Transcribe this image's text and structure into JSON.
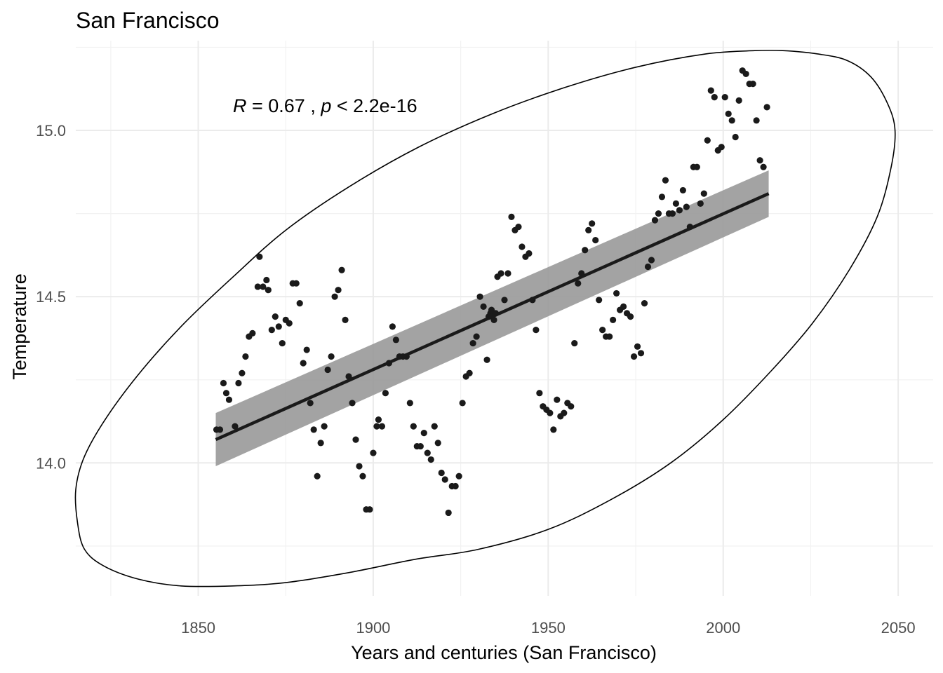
{
  "chart_data": {
    "type": "scatter",
    "title": "San Francisco",
    "xlabel": "Years and centuries (San Francisco)",
    "ylabel": "Temperature",
    "annotation": {
      "r_label": "R",
      "r_text": " = 0.67 , ",
      "p_label": "p",
      "p_text": " < 2.2e-16"
    },
    "xlim": [
      1815,
      2060
    ],
    "ylim": [
      13.6,
      15.27
    ],
    "x_major_ticks": [
      1850,
      1900,
      1950,
      2000,
      2050
    ],
    "x_minor_ticks": [
      1825,
      1875,
      1925,
      1975,
      2025
    ],
    "y_major_ticks": [
      14.0,
      14.5,
      15.0
    ],
    "y_minor_ticks": [
      13.75,
      14.25,
      14.75,
      15.25
    ],
    "x_tick_labels": [
      "1850",
      "1900",
      "1950",
      "2000",
      "2050"
    ],
    "y_tick_labels": [
      "14.0",
      "14.5",
      "15.0"
    ],
    "grid": true,
    "point_color": "#1a1a1a",
    "line_color": "#1a1a1a",
    "ribbon_color": "#999999",
    "regression": {
      "x": [
        1855,
        2013
      ],
      "y": [
        14.07,
        14.81
      ],
      "ci_lower": [
        13.99,
        14.74
      ],
      "ci_upper": [
        14.15,
        14.88
      ]
    },
    "ellipse_path": [
      [
        2017.0,
        15.24
      ],
      [
        2027.0,
        15.23
      ],
      [
        2035.5,
        15.21
      ],
      [
        2042.3,
        15.16
      ],
      [
        2047.0,
        15.08
      ],
      [
        2049.1,
        15.0
      ],
      [
        2048.0,
        14.89
      ],
      [
        2044.0,
        14.74
      ],
      [
        2036.0,
        14.58
      ],
      [
        2025.5,
        14.42
      ],
      [
        2014.0,
        14.28
      ],
      [
        2000.0,
        14.13
      ],
      [
        1985.0,
        14.0
      ],
      [
        1968.0,
        13.89
      ],
      [
        1950.0,
        13.8
      ],
      [
        1930.0,
        13.74
      ],
      [
        1912.0,
        13.71
      ],
      [
        1893.0,
        13.67
      ],
      [
        1875.0,
        13.64
      ],
      [
        1860.0,
        13.63
      ],
      [
        1845.0,
        13.63
      ],
      [
        1833.0,
        13.65
      ],
      [
        1823.0,
        13.69
      ],
      [
        1817.5,
        13.74
      ],
      [
        1815.5,
        13.82
      ],
      [
        1815.0,
        13.92
      ],
      [
        1817.5,
        14.02
      ],
      [
        1824.0,
        14.14
      ],
      [
        1834.0,
        14.28
      ],
      [
        1846.0,
        14.42
      ],
      [
        1860.0,
        14.56
      ],
      [
        1875.0,
        14.7
      ],
      [
        1893.0,
        14.83
      ],
      [
        1913.0,
        14.95
      ],
      [
        1934.0,
        15.05
      ],
      [
        1955.0,
        15.13
      ],
      [
        1975.0,
        15.19
      ],
      [
        1995.0,
        15.23
      ],
      [
        2009.0,
        15.24
      ],
      [
        2017.0,
        15.24
      ]
    ],
    "points": [
      [
        1855.2,
        14.1
      ],
      [
        1856.2,
        14.1
      ],
      [
        1857.2,
        14.24
      ],
      [
        1858.0,
        14.21
      ],
      [
        1858.8,
        14.19
      ],
      [
        1860.5,
        14.11
      ],
      [
        1861.5,
        14.24
      ],
      [
        1862.5,
        14.27
      ],
      [
        1863.5,
        14.32
      ],
      [
        1864.5,
        14.38
      ],
      [
        1865.5,
        14.39
      ],
      [
        1867.0,
        14.53
      ],
      [
        1867.5,
        14.62
      ],
      [
        1868.5,
        14.53
      ],
      [
        1869.5,
        14.55
      ],
      [
        1870.0,
        14.52
      ],
      [
        1871.0,
        14.4
      ],
      [
        1872.0,
        14.44
      ],
      [
        1873.0,
        14.41
      ],
      [
        1874.0,
        14.36
      ],
      [
        1875.0,
        14.43
      ],
      [
        1876.0,
        14.42
      ],
      [
        1877.0,
        14.54
      ],
      [
        1878.0,
        14.54
      ],
      [
        1879.0,
        14.48
      ],
      [
        1880.0,
        14.3
      ],
      [
        1881.0,
        14.34
      ],
      [
        1882.0,
        14.18
      ],
      [
        1883.0,
        14.1
      ],
      [
        1884.0,
        13.96
      ],
      [
        1885.0,
        14.06
      ],
      [
        1886.0,
        14.11
      ],
      [
        1887.0,
        14.28
      ],
      [
        1888.0,
        14.32
      ],
      [
        1889.0,
        14.5
      ],
      [
        1890.0,
        14.52
      ],
      [
        1891.0,
        14.58
      ],
      [
        1892.0,
        14.43
      ],
      [
        1893.0,
        14.26
      ],
      [
        1894.0,
        14.18
      ],
      [
        1895.0,
        14.07
      ],
      [
        1896.0,
        13.99
      ],
      [
        1897.0,
        13.96
      ],
      [
        1898.0,
        13.86
      ],
      [
        1899.0,
        13.86
      ],
      [
        1900.0,
        14.03
      ],
      [
        1901.0,
        14.11
      ],
      [
        1901.5,
        14.13
      ],
      [
        1902.5,
        14.11
      ],
      [
        1903.5,
        14.21
      ],
      [
        1904.5,
        14.3
      ],
      [
        1905.5,
        14.41
      ],
      [
        1906.5,
        14.37
      ],
      [
        1907.5,
        14.32
      ],
      [
        1908.5,
        14.32
      ],
      [
        1909.5,
        14.32
      ],
      [
        1910.5,
        14.18
      ],
      [
        1911.5,
        14.11
      ],
      [
        1912.5,
        14.05
      ],
      [
        1913.5,
        14.05
      ],
      [
        1914.5,
        14.09
      ],
      [
        1915.5,
        14.03
      ],
      [
        1916.5,
        14.01
      ],
      [
        1917.5,
        14.11
      ],
      [
        1918.5,
        14.06
      ],
      [
        1919.5,
        13.97
      ],
      [
        1920.5,
        13.95
      ],
      [
        1921.5,
        13.85
      ],
      [
        1922.5,
        13.93
      ],
      [
        1923.5,
        13.93
      ],
      [
        1924.5,
        13.96
      ],
      [
        1925.5,
        14.18
      ],
      [
        1926.5,
        14.26
      ],
      [
        1927.5,
        14.27
      ],
      [
        1928.5,
        14.36
      ],
      [
        1929.5,
        14.38
      ],
      [
        1930.5,
        14.5
      ],
      [
        1931.5,
        14.47
      ],
      [
        1932.5,
        14.31
      ],
      [
        1933.0,
        14.44
      ],
      [
        1933.5,
        14.45
      ],
      [
        1933.8,
        14.46
      ],
      [
        1934.0,
        14.44
      ],
      [
        1934.5,
        14.43
      ],
      [
        1935.0,
        14.45
      ],
      [
        1935.5,
        14.56
      ],
      [
        1936.5,
        14.57
      ],
      [
        1937.5,
        14.49
      ],
      [
        1938.5,
        14.57
      ],
      [
        1939.5,
        14.74
      ],
      [
        1940.5,
        14.7
      ],
      [
        1941.5,
        14.71
      ],
      [
        1942.5,
        14.65
      ],
      [
        1943.5,
        14.62
      ],
      [
        1944.5,
        14.63
      ],
      [
        1945.5,
        14.49
      ],
      [
        1946.5,
        14.4
      ],
      [
        1947.5,
        14.21
      ],
      [
        1948.5,
        14.17
      ],
      [
        1949.5,
        14.16
      ],
      [
        1950.5,
        14.15
      ],
      [
        1951.5,
        14.1
      ],
      [
        1952.5,
        14.19
      ],
      [
        1953.5,
        14.14
      ],
      [
        1954.5,
        14.15
      ],
      [
        1955.5,
        14.18
      ],
      [
        1956.5,
        14.17
      ],
      [
        1957.5,
        14.36
      ],
      [
        1958.5,
        14.54
      ],
      [
        1959.5,
        14.57
      ],
      [
        1960.5,
        14.64
      ],
      [
        1961.5,
        14.7
      ],
      [
        1962.5,
        14.72
      ],
      [
        1963.5,
        14.67
      ],
      [
        1964.5,
        14.49
      ],
      [
        1965.5,
        14.4
      ],
      [
        1966.5,
        14.38
      ],
      [
        1967.5,
        14.38
      ],
      [
        1968.5,
        14.43
      ],
      [
        1969.5,
        14.51
      ],
      [
        1970.5,
        14.46
      ],
      [
        1971.5,
        14.47
      ],
      [
        1972.5,
        14.45
      ],
      [
        1973.5,
        14.44
      ],
      [
        1974.5,
        14.32
      ],
      [
        1975.5,
        14.35
      ],
      [
        1976.5,
        14.33
      ],
      [
        1977.5,
        14.48
      ],
      [
        1978.5,
        14.59
      ],
      [
        1979.5,
        14.61
      ],
      [
        1980.5,
        14.73
      ],
      [
        1981.5,
        14.75
      ],
      [
        1982.5,
        14.8
      ],
      [
        1983.5,
        14.85
      ],
      [
        1984.5,
        14.75
      ],
      [
        1985.5,
        14.75
      ],
      [
        1986.5,
        14.78
      ],
      [
        1987.5,
        14.76
      ],
      [
        1988.5,
        14.82
      ],
      [
        1989.5,
        14.77
      ],
      [
        1990.5,
        14.71
      ],
      [
        1991.5,
        14.89
      ],
      [
        1992.5,
        14.89
      ],
      [
        1993.5,
        14.78
      ],
      [
        1994.5,
        14.81
      ],
      [
        1995.5,
        14.97
      ],
      [
        1996.5,
        15.12
      ],
      [
        1997.5,
        15.1
      ],
      [
        1998.5,
        14.94
      ],
      [
        1999.5,
        14.95
      ],
      [
        2000.5,
        15.1
      ],
      [
        2001.5,
        15.05
      ],
      [
        2002.5,
        15.03
      ],
      [
        2003.5,
        14.98
      ],
      [
        2004.5,
        15.09
      ],
      [
        2005.5,
        15.18
      ],
      [
        2006.5,
        15.17
      ],
      [
        2007.5,
        15.14
      ],
      [
        2008.5,
        15.14
      ],
      [
        2009.5,
        15.03
      ],
      [
        2010.5,
        14.91
      ],
      [
        2011.5,
        14.89
      ],
      [
        2012.5,
        15.07
      ]
    ]
  }
}
